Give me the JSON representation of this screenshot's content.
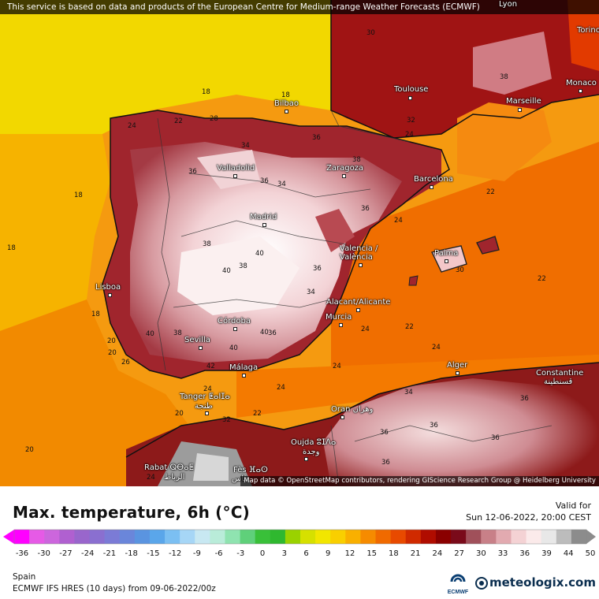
{
  "attribution_top": "This service is based on data and products of the European Centre for Medium-range Weather Forecasts (ECMWF)",
  "attribution_bottom": "Map data © OpenStreetMap contributors, rendering GIScience Research Group @ Heidelberg University",
  "map": {
    "cities": [
      {
        "name": "Lyon",
        "key": "lyon"
      },
      {
        "name": "Torino",
        "key": "torino"
      },
      {
        "name": "Monaco",
        "key": "monaco"
      },
      {
        "name": "Toulouse",
        "key": "toulouse"
      },
      {
        "name": "Marseille",
        "key": "marseille"
      },
      {
        "name": "Bilbao",
        "key": "bilbao"
      },
      {
        "name": "Valladolid",
        "key": "valladolid"
      },
      {
        "name": "Zaragoza",
        "key": "zaragoza"
      },
      {
        "name": "Barcelona",
        "key": "barcelona"
      },
      {
        "name": "Madrid",
        "key": "madrid"
      },
      {
        "name": "Valencia / València",
        "key": "valencia"
      },
      {
        "name": "Palma",
        "key": "palma"
      },
      {
        "name": "Lisboa",
        "key": "lisboa"
      },
      {
        "name": "Alacant/Alicante",
        "key": "alicante"
      },
      {
        "name": "Murcia",
        "key": "murcia"
      },
      {
        "name": "Córdoba",
        "key": "cordoba"
      },
      {
        "name": "Sevilla",
        "key": "sevilla"
      },
      {
        "name": "Málaga",
        "key": "malaga"
      },
      {
        "name": "Alger",
        "key": "alger"
      },
      {
        "name": "Constantine",
        "key": "constantine"
      },
      {
        "name": "قسنطينة",
        "key": "constantine_ar"
      },
      {
        "name": "Tanger ⵟⴰⵏⵊⴰ",
        "key": "tanger"
      },
      {
        "name": "طنجة",
        "key": "tanger_ar"
      },
      {
        "name": "Oran وهران",
        "key": "oran"
      },
      {
        "name": "Oujda ⵓⵊⴷⴰ",
        "key": "oujda"
      },
      {
        "name": "وجدة",
        "key": "oujda_ar"
      },
      {
        "name": "Rabat ⵕⴱⴰⵟ",
        "key": "rabat"
      },
      {
        "name": "الرباط",
        "key": "rabat_ar"
      },
      {
        "name": "Fès ⴼⴰⵙ",
        "key": "fes"
      },
      {
        "name": "فاس",
        "key": "fes_ar"
      }
    ],
    "contour_labels": [
      "18",
      "18",
      "18",
      "18",
      "18",
      "20",
      "22",
      "24",
      "24",
      "24",
      "24",
      "24",
      "24",
      "22",
      "22",
      "22",
      "20",
      "20",
      "20",
      "24",
      "26",
      "28",
      "30",
      "30",
      "32",
      "34",
      "34",
      "34",
      "36",
      "36",
      "36",
      "36",
      "36",
      "36",
      "38",
      "38",
      "38",
      "38",
      "40",
      "40",
      "40",
      "40",
      "40",
      "42",
      "36",
      "36",
      "36",
      "36",
      "24",
      "24",
      "22",
      "32",
      "34",
      "36",
      "38"
    ]
  },
  "legend": {
    "title": "Max. temperature, 6h (°C)",
    "valid_label": "Valid for",
    "valid_time": "Sun 12-06-2022, 20:00 CEST",
    "ticks": [
      "-36",
      "-30",
      "-27",
      "-24",
      "-21",
      "-18",
      "-15",
      "-12",
      "-9",
      "-6",
      "-3",
      "0",
      "3",
      "6",
      "9",
      "12",
      "15",
      "18",
      "21",
      "24",
      "27",
      "30",
      "33",
      "36",
      "39",
      "44",
      "50"
    ],
    "colors": [
      "#ff00ff",
      "#e65ae6",
      "#cc66dd",
      "#b060d0",
      "#9966cc",
      "#8a6fd0",
      "#7b7bd6",
      "#6a86da",
      "#5a94e0",
      "#5aa6ea",
      "#7bbff2",
      "#a6d6f6",
      "#c8e8f2",
      "#b9ecd9",
      "#8fe3b0",
      "#5fd07a",
      "#39c039",
      "#2fb82f",
      "#9ad200",
      "#d6e000",
      "#f2e600",
      "#f9cf00",
      "#f9b000",
      "#f68b00",
      "#f06a00",
      "#e84a00",
      "#d02a00",
      "#b00c00",
      "#8a0000",
      "#7a0a1a",
      "#a0505a",
      "#c88088",
      "#e2aab0",
      "#f4d2d4",
      "#fbeaea",
      "#e8e8e8",
      "#bcbcbc",
      "#8c8c8c"
    ],
    "region": "Spain",
    "model_line": "ECMWF IFS HRES (10 days) from 09-06-2022/00z",
    "ecmwf_logo_text": "ECMWF",
    "brand": "meteologix.com"
  }
}
